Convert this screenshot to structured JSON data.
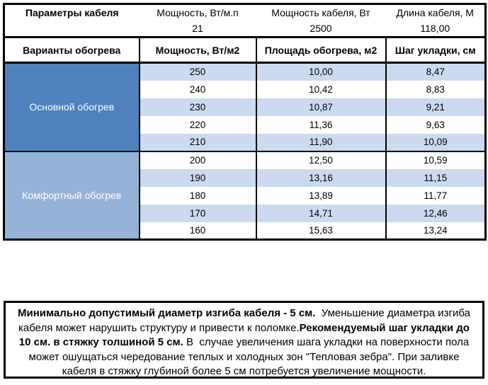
{
  "table": {
    "params": {
      "title": "Параметры кабеля",
      "items": [
        {
          "label": "Мощность, Вт/м.п",
          "value": "21"
        },
        {
          "label": "Мощность кабеля, Вт",
          "value": "2500"
        },
        {
          "label": "Длина кабеля, М",
          "value": "118,00"
        }
      ]
    },
    "columns": [
      "Варианты обогрева",
      "Мощность, Вт/м2",
      "Площадь обогрева, м2",
      "Шаг укладки, см"
    ],
    "sections": [
      {
        "label": "Основной обогрев",
        "rows": [
          [
            "250",
            "10,00",
            "8,47"
          ],
          [
            "240",
            "10,42",
            "8,83"
          ],
          [
            "230",
            "10,87",
            "9,21"
          ],
          [
            "220",
            "11,36",
            "9,63"
          ],
          [
            "210",
            "11,90",
            "10,09"
          ]
        ]
      },
      {
        "label": "Комфортный обогрев",
        "rows": [
          [
            "200",
            "12,50",
            "10,59"
          ],
          [
            "190",
            "13,16",
            "11,15"
          ],
          [
            "180",
            "13,89",
            "11,77"
          ],
          [
            "170",
            "14,71",
            "12,46"
          ],
          [
            "160",
            "15,63",
            "13,24"
          ]
        ]
      }
    ]
  },
  "note": {
    "segments": [
      {
        "text": "Минимально допустимый диаметр изгиба кабеля - 5 см.",
        "bold": true
      },
      {
        "text": "  Уменьшение диаметра изгиба кабеля может нарушить структуру и привести к поломке.",
        "bold": false
      },
      {
        "text": "Рекомендуемый шаг укладки до 10 см. в стяжку толшиной 5 см.",
        "bold": true
      },
      {
        "text": " В  случае увеличения шага укладки на поверхности пола может ошущаться чередование теплых и холодных зон \"Тепловая зебра\". При заливке кабеля в стяжку глубиной более 5 см потребуется увеличение мощности.",
        "bold": false
      }
    ]
  },
  "colors": {
    "section_primary": "#4F81BD",
    "section_comfort": "#95B3D7",
    "band": "#CBDAF0",
    "border_color": "#000000",
    "text_color": "#000000",
    "section_text": "#FFFFFF"
  }
}
